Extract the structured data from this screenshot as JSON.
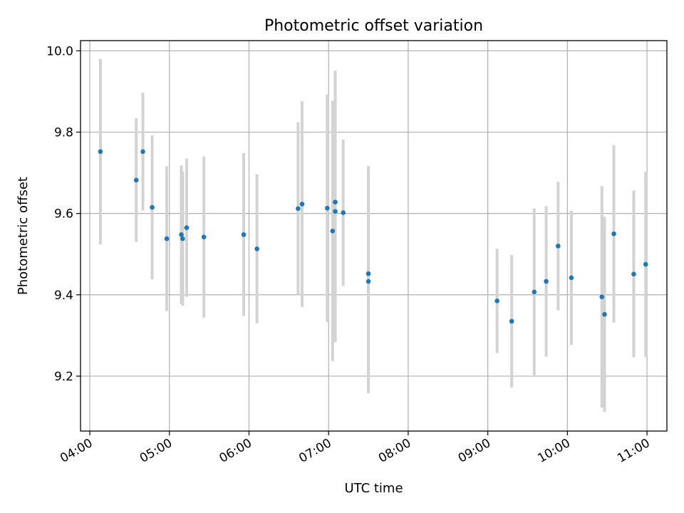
{
  "chart_data": {
    "type": "scatter",
    "title": "Photometric offset variation",
    "xlabel": "UTC time",
    "ylabel": "Photometric offset",
    "xlim": [
      "03:53",
      "11:15"
    ],
    "ylim": [
      9.065,
      10.025
    ],
    "xticks": [
      "04:00",
      "05:00",
      "06:00",
      "07:00",
      "08:00",
      "09:00",
      "10:00",
      "11:00"
    ],
    "yticks": [
      9.2,
      9.4,
      9.6,
      9.8,
      10.0
    ],
    "grid": true,
    "errorbar_color": "#d3d3d3",
    "point_color": "#1f77b4",
    "points": [
      {
        "t": "04:08",
        "y": 9.752,
        "err": 0.228
      },
      {
        "t": "04:35",
        "y": 9.682,
        "err": 0.152
      },
      {
        "t": "04:40",
        "y": 9.752,
        "err": 0.145
      },
      {
        "t": "04:47",
        "y": 9.615,
        "err": 0.177
      },
      {
        "t": "04:58",
        "y": 9.538,
        "err": 0.178
      },
      {
        "t": "05:09",
        "y": 9.548,
        "err": 0.17
      },
      {
        "t": "05:10",
        "y": 9.538,
        "err": 0.165
      },
      {
        "t": "05:13",
        "y": 9.565,
        "err": 0.17
      },
      {
        "t": "05:26",
        "y": 9.542,
        "err": 0.198
      },
      {
        "t": "05:56",
        "y": 9.548,
        "err": 0.2
      },
      {
        "t": "06:06",
        "y": 9.513,
        "err": 0.183
      },
      {
        "t": "06:37",
        "y": 9.612,
        "err": 0.212
      },
      {
        "t": "06:40",
        "y": 9.623,
        "err": 0.253
      },
      {
        "t": "06:59",
        "y": 9.613,
        "err": 0.28
      },
      {
        "t": "07:03",
        "y": 9.557,
        "err": 0.32
      },
      {
        "t": "07:05",
        "y": 9.628,
        "err": 0.323
      },
      {
        "t": "07:05",
        "y": 9.605,
        "err": 0.322
      },
      {
        "t": "07:11",
        "y": 9.602,
        "err": 0.18
      },
      {
        "t": "07:30",
        "y": 9.452,
        "err": 0.265
      },
      {
        "t": "07:30",
        "y": 9.433,
        "err": 0.275
      },
      {
        "t": "09:07",
        "y": 9.385,
        "err": 0.128
      },
      {
        "t": "09:18",
        "y": 9.335,
        "err": 0.163
      },
      {
        "t": "09:35",
        "y": 9.407,
        "err": 0.205
      },
      {
        "t": "09:44",
        "y": 9.433,
        "err": 0.185
      },
      {
        "t": "09:53",
        "y": 9.52,
        "err": 0.158
      },
      {
        "t": "10:03",
        "y": 9.442,
        "err": 0.165
      },
      {
        "t": "10:26",
        "y": 9.395,
        "err": 0.272
      },
      {
        "t": "10:28",
        "y": 9.352,
        "err": 0.24
      },
      {
        "t": "10:35",
        "y": 9.55,
        "err": 0.218
      },
      {
        "t": "10:50",
        "y": 9.451,
        "err": 0.205
      },
      {
        "t": "10:59",
        "y": 9.475,
        "err": 0.228
      }
    ]
  }
}
